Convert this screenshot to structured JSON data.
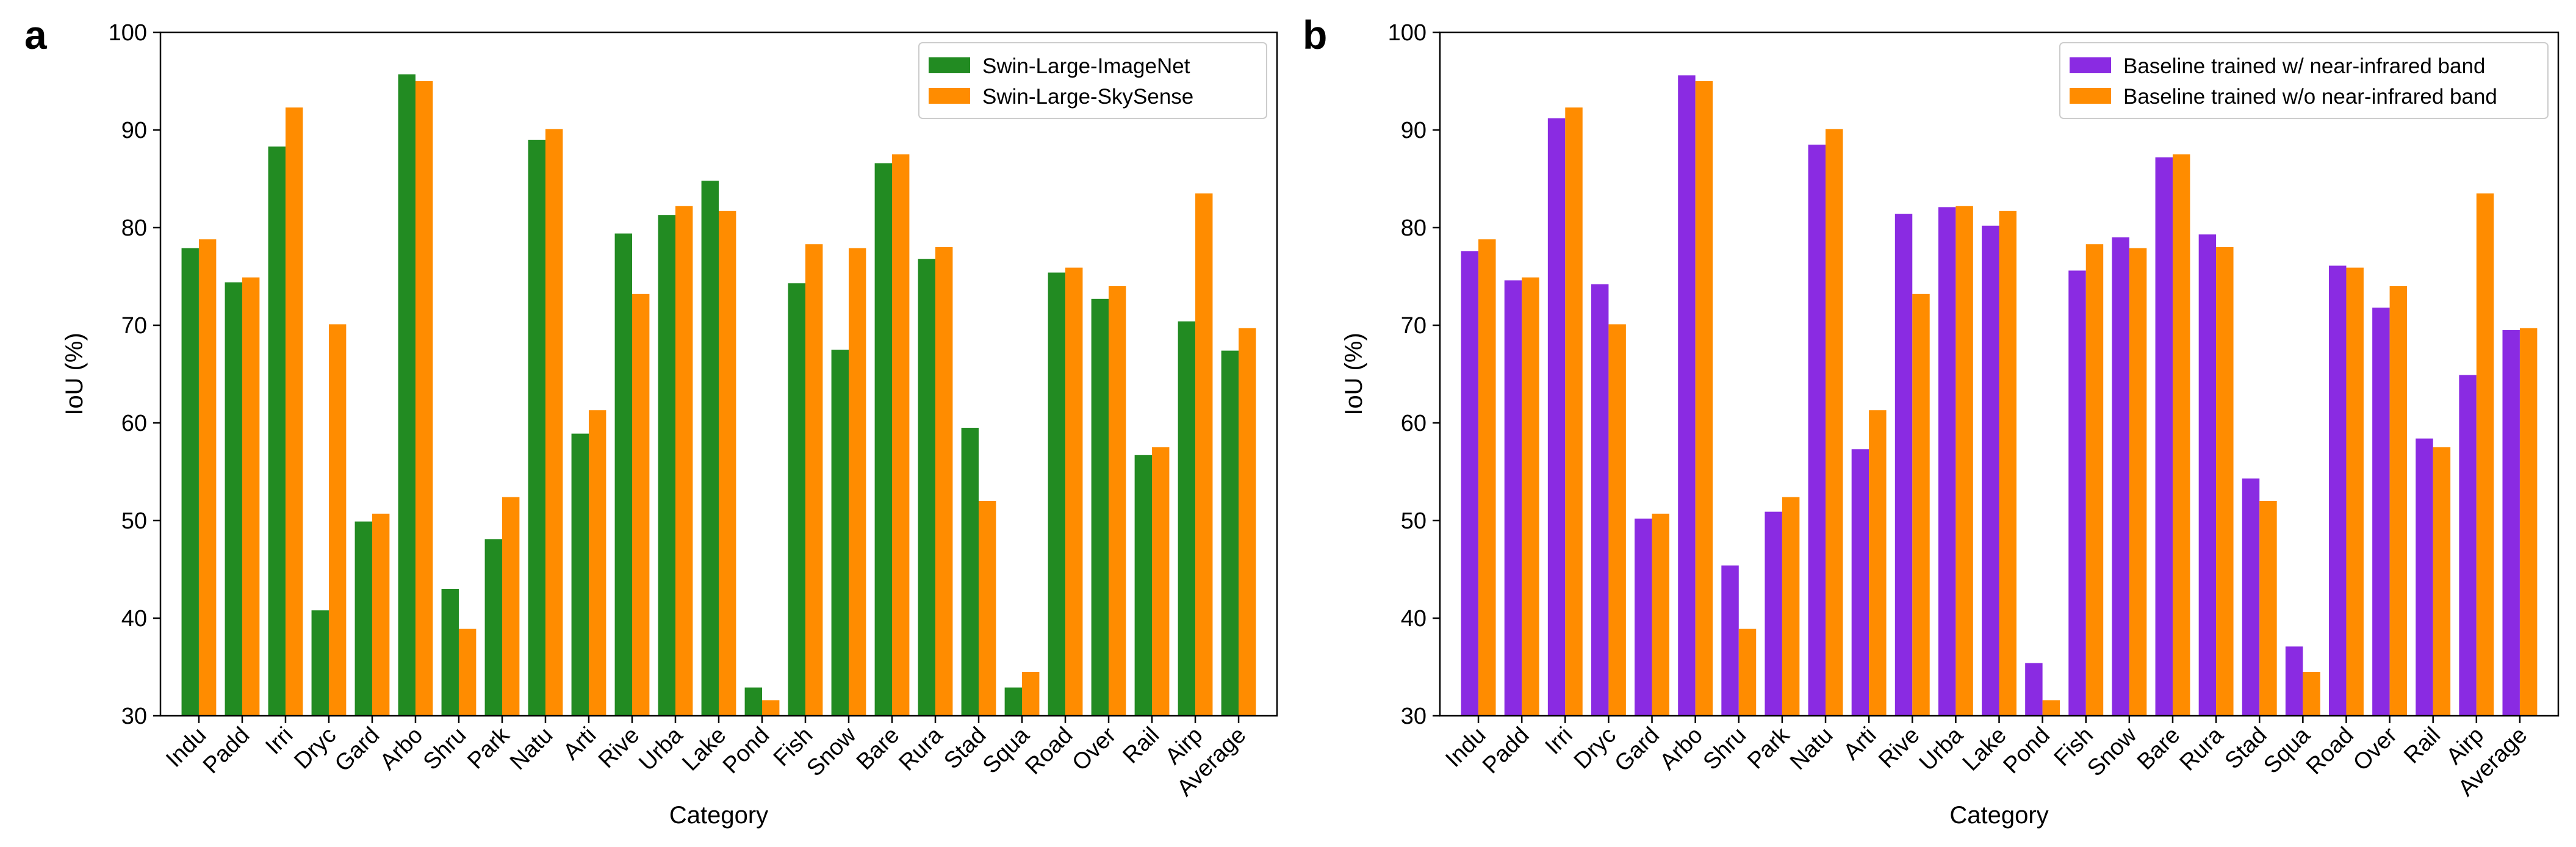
{
  "chart_data": [
    {
      "type": "bar",
      "panel_label": "a",
      "xlabel": "Category",
      "ylabel": "IoU (%)",
      "ylim": [
        30,
        100
      ],
      "yticks": [
        30,
        40,
        50,
        60,
        70,
        80,
        90,
        100
      ],
      "legend_position": "top-right",
      "categories": [
        "Indu",
        "Padd",
        "Irri",
        "Dryc",
        "Gard",
        "Arbo",
        "Shru",
        "Park",
        "Natu",
        "Arti",
        "Rive",
        "Urba",
        "Lake",
        "Pond",
        "Fish",
        "Snow",
        "Bare",
        "Rura",
        "Stad",
        "Squa",
        "Road",
        "Over",
        "Rail",
        "Airp",
        "Average"
      ],
      "series": [
        {
          "name": "Swin-Large-ImageNet",
          "color": "#228B22",
          "values": [
            77.9,
            74.4,
            88.3,
            40.8,
            49.9,
            95.7,
            43.0,
            48.1,
            89.0,
            58.9,
            79.4,
            81.3,
            84.8,
            32.9,
            74.3,
            67.5,
            86.6,
            76.8,
            59.5,
            32.9,
            75.4,
            72.7,
            56.7,
            70.4,
            67.4
          ]
        },
        {
          "name": "Swin-Large-SkySense",
          "color": "#FF8C00",
          "values": [
            78.8,
            74.9,
            92.3,
            70.1,
            50.7,
            95.0,
            38.9,
            52.4,
            90.1,
            61.3,
            73.2,
            82.2,
            81.7,
            31.6,
            78.3,
            77.9,
            87.5,
            78.0,
            52.0,
            34.5,
            75.9,
            74.0,
            57.5,
            83.5,
            69.7
          ]
        }
      ]
    },
    {
      "type": "bar",
      "panel_label": "b",
      "xlabel": "Category",
      "ylabel": "IoU (%)",
      "ylim": [
        30,
        100
      ],
      "yticks": [
        30,
        40,
        50,
        60,
        70,
        80,
        90,
        100
      ],
      "legend_position": "top-right",
      "categories": [
        "Indu",
        "Padd",
        "Irri",
        "Dryc",
        "Gard",
        "Arbo",
        "Shru",
        "Park",
        "Natu",
        "Arti",
        "Rive",
        "Urba",
        "Lake",
        "Pond",
        "Fish",
        "Snow",
        "Bare",
        "Rura",
        "Stad",
        "Squa",
        "Road",
        "Over",
        "Rail",
        "Airp",
        "Average"
      ],
      "series": [
        {
          "name": "Baseline trained w/ near-infrared band",
          "color": "#8A2BE2",
          "values": [
            77.6,
            74.6,
            91.2,
            74.2,
            50.2,
            95.6,
            45.4,
            50.9,
            88.5,
            57.3,
            81.4,
            82.1,
            80.2,
            35.4,
            75.6,
            79.0,
            87.2,
            79.3,
            54.3,
            37.1,
            76.1,
            71.8,
            58.4,
            64.9,
            69.5
          ]
        },
        {
          "name": "Baseline trained w/o near-infrared band",
          "color": "#FF8C00",
          "values": [
            78.8,
            74.9,
            92.3,
            70.1,
            50.7,
            95.0,
            38.9,
            52.4,
            90.1,
            61.3,
            73.2,
            82.2,
            81.7,
            31.6,
            78.3,
            77.9,
            87.5,
            78.0,
            52.0,
            34.5,
            75.9,
            74.0,
            57.5,
            83.5,
            69.7
          ]
        }
      ]
    }
  ]
}
